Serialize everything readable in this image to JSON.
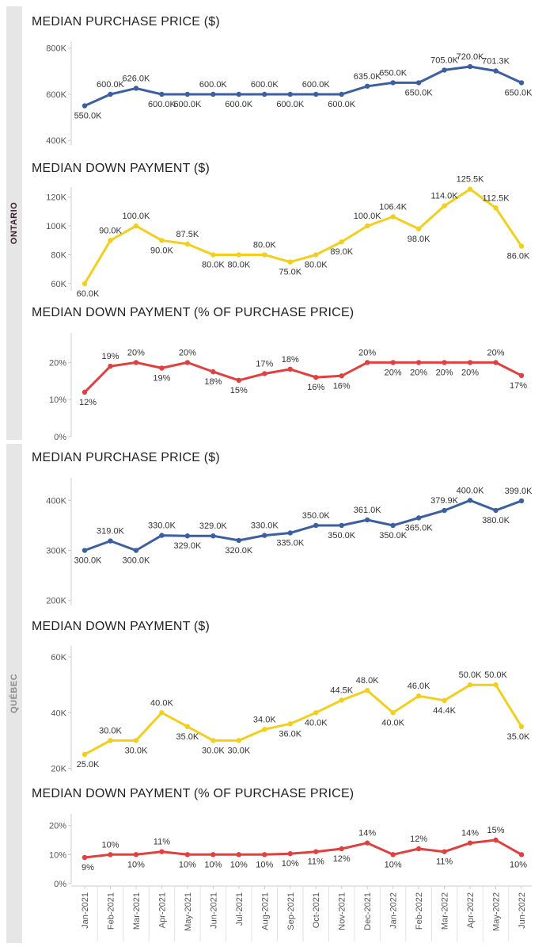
{
  "regions": [
    {
      "name": "ONTARIO",
      "color": "#3a1f2e"
    },
    {
      "name": "QUÉBEC",
      "color": "#8a8a8a"
    }
  ],
  "x_labels": [
    "Jan-2021",
    "Feb-2021",
    "Mar-2021",
    "Apr-2021",
    "May-2021",
    "Jun-2021",
    "Jul-2021",
    "Aug-2021",
    "Sep-2021",
    "Oct-2021",
    "Nov-2021",
    "Dec-2021",
    "Jan-2022",
    "Feb-2022",
    "Mar-2022",
    "Apr-2022",
    "May-2022",
    "Jun-2022"
  ],
  "chart_data": [
    {
      "type": "line",
      "region": "ONTARIO",
      "title": "MEDIAN PURCHASE PRICE ($)",
      "color": "#3b5fa0",
      "ylim": [
        380000,
        830000
      ],
      "ticks": [
        400000,
        600000,
        800000
      ],
      "tick_labels": [
        "400K",
        "600K",
        "800K"
      ],
      "values": [
        550000,
        600000,
        626000,
        600000,
        600000,
        600000,
        600000,
        600000,
        600000,
        600000,
        600000,
        635000,
        650000,
        650000,
        705000,
        720000,
        701300,
        650000
      ],
      "labels": [
        "550.0K",
        "600.0K",
        "626.0K",
        "600.0K",
        "600.0K",
        "600.0K",
        "600.0K",
        "600.0K",
        "600.0K",
        "600.0K",
        "600.0K",
        "635.0K",
        "650.0K",
        "650.0K",
        "705.0K",
        "720.0K",
        "701.3K",
        "650.0K"
      ],
      "label_pos": [
        "below",
        "above",
        "above",
        "below",
        "below",
        "above",
        "below",
        "above",
        "below",
        "above",
        "below",
        "above",
        "above",
        "below",
        "above",
        "above",
        "above",
        "below"
      ]
    },
    {
      "type": "line",
      "region": "ONTARIO",
      "title": "MEDIAN DOWN PAYMENT ($)",
      "color": "#f2cf1d",
      "ylim": [
        55000,
        127000
      ],
      "ticks": [
        60000,
        80000,
        100000,
        120000
      ],
      "tick_labels": [
        "60K",
        "80K",
        "100K",
        "120K"
      ],
      "values": [
        60000,
        90000,
        100000,
        90000,
        87500,
        80000,
        80000,
        80000,
        75000,
        80000,
        89000,
        100000,
        106400,
        98000,
        114000,
        125500,
        112500,
        86000
      ],
      "labels": [
        "60.0K",
        "90.0K",
        "100.0K",
        "90.0K",
        "87.5K",
        "80.0K",
        "80.0K",
        "80.0K",
        "75.0K",
        "80.0K",
        "89.0K",
        "100.0K",
        "106.4K",
        "98.0K",
        "114.0K",
        "125.5K",
        "112.5K",
        "86.0K"
      ],
      "label_pos": [
        "below",
        "above",
        "above",
        "below",
        "above",
        "below",
        "below",
        "above",
        "below",
        "below",
        "below",
        "above",
        "above",
        "below",
        "above",
        "above",
        "above",
        "below"
      ]
    },
    {
      "type": "line",
      "region": "ONTARIO",
      "title": "MEDIAN DOWN PAYMENT (% OF PURCHASE PRICE)",
      "color": "#e04040",
      "ylim": [
        0,
        28
      ],
      "ticks": [
        0,
        10,
        20
      ],
      "tick_labels": [
        "0%",
        "10%",
        "20%"
      ],
      "values": [
        12,
        19,
        20,
        18.5,
        20,
        17.5,
        15.2,
        17,
        18.2,
        16,
        16.4,
        20,
        20,
        20,
        20,
        20,
        20,
        16.5
      ],
      "labels": [
        "12%",
        "19%",
        "20%",
        "19%",
        "20%",
        "18%",
        "15%",
        "17%",
        "18%",
        "16%",
        "16%",
        "20%",
        "20%",
        "20%",
        "20%",
        "20%",
        "20%",
        "17%"
      ],
      "label_pos": [
        "below",
        "above",
        "above",
        "below",
        "above",
        "below",
        "below",
        "above",
        "above",
        "below",
        "below",
        "above",
        "below",
        "below",
        "below",
        "below",
        "above",
        "below"
      ]
    },
    {
      "type": "line",
      "region": "QUÉBEC",
      "title": "MEDIAN PURCHASE PRICE ($)",
      "color": "#3b5fa0",
      "ylim": [
        190000,
        445000
      ],
      "ticks": [
        200000,
        300000,
        400000
      ],
      "tick_labels": [
        "200K",
        "300K",
        "400K"
      ],
      "values": [
        300000,
        319000,
        300000,
        330000,
        329000,
        329000,
        320000,
        330000,
        335000,
        350000,
        350000,
        361000,
        350000,
        365000,
        379900,
        400000,
        380000,
        399000
      ],
      "labels": [
        "300.0K",
        "319.0K",
        "300.0K",
        "330.0K",
        "329.0K",
        "329.0K",
        "320.0K",
        "330.0K",
        "335.0K",
        "350.0K",
        "350.0K",
        "361.0K",
        "350.0K",
        "365.0K",
        "379.9K",
        "400.0K",
        "380.0K",
        "399.0K"
      ],
      "label_pos": [
        "below",
        "above",
        "below",
        "above",
        "below",
        "above",
        "below",
        "above",
        "below",
        "above",
        "below",
        "above",
        "below",
        "below",
        "above",
        "above",
        "below",
        "above"
      ]
    },
    {
      "type": "line",
      "region": "QUÉBEC",
      "title": "MEDIAN DOWN PAYMENT ($)",
      "color": "#f2cf1d",
      "ylim": [
        19000,
        64000
      ],
      "ticks": [
        20000,
        40000,
        60000
      ],
      "tick_labels": [
        "20K",
        "40K",
        "60K"
      ],
      "values": [
        25000,
        30000,
        30000,
        40000,
        35000,
        30000,
        30000,
        34000,
        36000,
        40000,
        44500,
        48000,
        40000,
        46000,
        44400,
        50000,
        50000,
        35000
      ],
      "labels": [
        "25.0K",
        "30.0K",
        "30.0K",
        "40.0K",
        "35.0K",
        "30.0K",
        "30.0K",
        "34.0K",
        "36.0K",
        "40.0K",
        "44.5K",
        "48.0K",
        "40.0K",
        "46.0K",
        "44.4K",
        "50.0K",
        "50.0K",
        "35.0K"
      ],
      "label_pos": [
        "below",
        "above",
        "below",
        "above",
        "below",
        "below",
        "below",
        "above",
        "below",
        "below",
        "above",
        "above",
        "below",
        "above",
        "below",
        "above",
        "above",
        "below"
      ]
    },
    {
      "type": "line",
      "region": "QUÉBEC",
      "title": "MEDIAN DOWN PAYMENT (% OF PURCHASE PRICE)",
      "color": "#e04040",
      "ylim": [
        0,
        24
      ],
      "ticks": [
        0,
        10,
        20
      ],
      "tick_labels": [
        "0%",
        "10%",
        "20%"
      ],
      "values": [
        9,
        10,
        10,
        11,
        10,
        10,
        10,
        10,
        10.3,
        11,
        12,
        14,
        10,
        12,
        11,
        14,
        15,
        10
      ],
      "labels": [
        "9%",
        "10%",
        "10%",
        "11%",
        "10%",
        "10%",
        "10%",
        "10%",
        "10%",
        "11%",
        "12%",
        "14%",
        "10%",
        "12%",
        "11%",
        "14%",
        "15%",
        "10%"
      ],
      "label_pos": [
        "below",
        "above",
        "below",
        "above",
        "below",
        "below",
        "below",
        "below",
        "below",
        "below",
        "below",
        "above",
        "below",
        "above",
        "below",
        "above",
        "above",
        "below"
      ]
    }
  ]
}
